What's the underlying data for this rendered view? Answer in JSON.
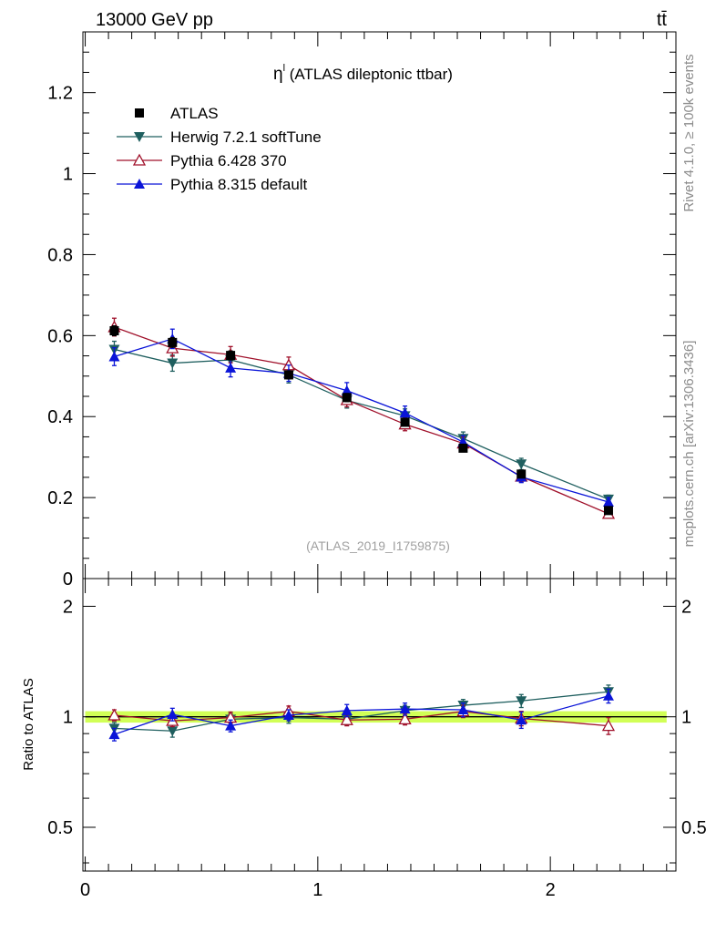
{
  "header": {
    "left": "13000 GeV pp",
    "right": "tt̄"
  },
  "side_labels": {
    "rivet": "Rivet 4.1.0, ≥ 100k events",
    "mcplots": "mcplots.cern.ch [arXiv:1306.3436]"
  },
  "colors": {
    "atlas": "#000000",
    "herwig": "#1f5f5f",
    "pythia6": "#a0102a",
    "pythia8": "#0a14d8",
    "band": "#ccff44"
  },
  "chart_data": {
    "type": "line",
    "title_symbol": "η",
    "title_sup": "l",
    "title_rest": " (ATLAS dileptonic ttbar)",
    "analysis_tag": "(ATLAS_2019_I1759875)",
    "x": [
      0.125,
      0.375,
      0.625,
      0.875,
      1.125,
      1.375,
      1.625,
      1.875,
      2.25
    ],
    "xlim": [
      -0.01,
      2.54
    ],
    "xticks": [
      0,
      1,
      2
    ],
    "xtick_labels": [
      "0",
      "1",
      "2"
    ],
    "main": {
      "ylim": [
        0,
        1.35
      ],
      "yticks": [
        0,
        0.2,
        0.4,
        0.6,
        0.8,
        1.0,
        1.2
      ],
      "ytick_labels": [
        "0",
        "0.2",
        "0.4",
        "0.6",
        "0.8",
        "1",
        "1.2"
      ]
    },
    "ratio": {
      "ylabel": "Ratio to ATLAS",
      "ylim": [
        0.38,
        2.38
      ],
      "log": true,
      "yticks": [
        0.5,
        1,
        2
      ],
      "ytick_labels": [
        "0.5",
        "1",
        "2"
      ]
    },
    "series": [
      {
        "key": "atlas",
        "name": "ATLAS",
        "marker": "square",
        "values": [
          0.612,
          0.583,
          0.551,
          0.503,
          0.447,
          0.386,
          0.322,
          0.258,
          0.168
        ],
        "errors": [
          0.012,
          0.012,
          0.011,
          0.01,
          0.01,
          0.009,
          0.008,
          0.007,
          0.006
        ]
      },
      {
        "key": "herwig",
        "name": "Herwig 7.2.1 softTune",
        "marker": "triangle-down",
        "values": [
          0.566,
          0.532,
          0.54,
          0.503,
          0.44,
          0.402,
          0.346,
          0.283,
          0.196
        ],
        "errors": [
          0.02,
          0.02,
          0.02,
          0.02,
          0.019,
          0.017,
          0.016,
          0.014,
          0.01
        ],
        "ratio": [
          0.93,
          0.915,
          0.985,
          0.995,
          0.985,
          1.04,
          1.075,
          1.105,
          1.17
        ],
        "ratio_errors": [
          0.035,
          0.035,
          0.035,
          0.035,
          0.035,
          0.035,
          0.04,
          0.045,
          0.05
        ]
      },
      {
        "key": "pythia6",
        "name": "Pythia 6.428 370",
        "marker": "triangle-up-open",
        "values": [
          0.621,
          0.569,
          0.553,
          0.527,
          0.441,
          0.381,
          0.334,
          0.252,
          0.16
        ],
        "errors": [
          0.022,
          0.02,
          0.02,
          0.02,
          0.017,
          0.016,
          0.015,
          0.013,
          0.01
        ],
        "ratio": [
          1.01,
          0.975,
          0.995,
          1.035,
          0.98,
          0.985,
          1.035,
          0.99,
          0.945
        ],
        "ratio_errors": [
          0.035,
          0.035,
          0.035,
          0.035,
          0.035,
          0.035,
          0.04,
          0.045,
          0.05
        ]
      },
      {
        "key": "pythia8",
        "name": "Pythia 8.315 default",
        "marker": "triangle-up",
        "values": [
          0.548,
          0.592,
          0.52,
          0.507,
          0.464,
          0.409,
          0.337,
          0.251,
          0.189
        ],
        "errors": [
          0.022,
          0.024,
          0.022,
          0.02,
          0.02,
          0.017,
          0.016,
          0.014,
          0.011
        ],
        "ratio": [
          0.895,
          1.015,
          0.945,
          1.01,
          1.04,
          1.05,
          1.045,
          0.98,
          1.14
        ],
        "ratio_errors": [
          0.035,
          0.04,
          0.035,
          0.035,
          0.04,
          0.04,
          0.045,
          0.05,
          0.05
        ]
      }
    ]
  }
}
